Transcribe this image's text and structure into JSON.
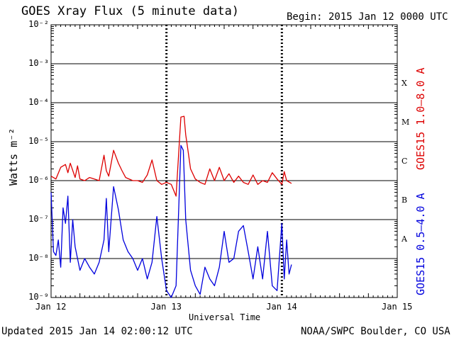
{
  "title": "GOES Xray Flux (5 minute data)",
  "begin_label": "Begin:  2015 Jan 12 0000 UTC",
  "footer_left": "Updated 2015 Jan 14 02:00:12 UTC",
  "footer_right": "NOAA/SWPC Boulder, CO USA",
  "colors": {
    "long": "#dd0000",
    "short": "#0000dd",
    "grid": "#000000"
  },
  "chart_data": {
    "type": "line",
    "title": "GOES Xray Flux (5 minute data)",
    "xlabel": "Universal Time",
    "ylabel": "Watts m⁻²",
    "y_scale": "log",
    "ylim": [
      1e-09,
      0.01
    ],
    "xlim": [
      "2015-01-12 00:00",
      "2015-01-15 00:00"
    ],
    "x_ticks": [
      "Jan 12",
      "Jan 13",
      "Jan 14",
      "Jan 15"
    ],
    "y_ticks": [
      "10⁻⁹",
      "10⁻⁸",
      "10⁻⁷",
      "10⁻⁶",
      "10⁻⁵",
      "10⁻⁴",
      "10⁻³",
      "10⁻²"
    ],
    "flare_classes": [
      "A",
      "B",
      "C",
      "M",
      "X"
    ],
    "grid": true,
    "series": [
      {
        "name": "GOES15 1.0–8.0 A",
        "x": [
          "2015-01-12 00:00",
          "2015-01-12 01:00",
          "2015-01-12 02:00",
          "2015-01-12 03:00",
          "2015-01-12 03:30",
          "2015-01-12 04:00",
          "2015-01-12 05:00",
          "2015-01-12 05:30",
          "2015-01-12 06:00",
          "2015-01-12 07:00",
          "2015-01-12 08:00",
          "2015-01-12 09:00",
          "2015-01-12 10:00",
          "2015-01-12 11:00",
          "2015-01-12 11:30",
          "2015-01-12 12:00",
          "2015-01-12 13:00",
          "2015-01-12 14:00",
          "2015-01-12 14:45",
          "2015-01-12 15:30",
          "2015-01-12 17:00",
          "2015-01-12 18:00",
          "2015-01-12 19:00",
          "2015-01-12 20:00",
          "2015-01-12 21:00",
          "2015-01-12 22:00",
          "2015-01-12 23:00",
          "2015-01-13 00:00",
          "2015-01-13 01:00",
          "2015-01-13 02:00",
          "2015-01-13 03:00",
          "2015-01-13 03:40",
          "2015-01-13 04:00",
          "2015-01-13 04:20",
          "2015-01-13 04:40",
          "2015-01-13 05:00",
          "2015-01-13 06:00",
          "2015-01-13 07:00",
          "2015-01-13 08:00",
          "2015-01-13 09:00",
          "2015-01-13 10:00",
          "2015-01-13 11:00",
          "2015-01-13 12:00",
          "2015-01-13 13:00",
          "2015-01-13 14:00",
          "2015-01-13 15:00",
          "2015-01-13 16:00",
          "2015-01-13 17:00",
          "2015-01-13 18:00",
          "2015-01-13 19:00",
          "2015-01-13 20:00",
          "2015-01-13 21:00",
          "2015-01-13 22:00",
          "2015-01-13 23:00",
          "2015-01-14 00:00",
          "2015-01-14 00:30",
          "2015-01-14 01:00",
          "2015-01-14 02:00"
        ],
        "y": [
          1.3e-06,
          1.1e-06,
          2.2e-06,
          2.6e-06,
          1.6e-06,
          2.8e-06,
          1.2e-06,
          2.4e-06,
          1.1e-06,
          1e-06,
          1.2e-06,
          1.1e-06,
          1e-06,
          4.5e-06,
          1.8e-06,
          1.3e-06,
          6e-06,
          2.8e-06,
          1.8e-06,
          1.2e-06,
          1e-06,
          1e-06,
          9e-07,
          1.4e-06,
          3.4e-06,
          1e-06,
          8e-07,
          9e-07,
          8e-07,
          4e-07,
          4.3e-05,
          4.5e-05,
          1.5e-05,
          8e-06,
          4e-06,
          2e-06,
          1.1e-06,
          9e-07,
          8e-07,
          2e-06,
          1e-06,
          2.2e-06,
          1e-06,
          1.5e-06,
          9e-07,
          1.3e-06,
          9e-07,
          8e-07,
          1.4e-06,
          8e-07,
          1e-06,
          9e-07,
          1.6e-06,
          1.1e-06,
          8e-07,
          1.7e-06,
          1e-06,
          8.5e-07
        ]
      },
      {
        "name": "GOES15 0.5–4.0 A",
        "x": [
          "2015-01-12 00:00",
          "2015-01-12 00:30",
          "2015-01-12 01:00",
          "2015-01-12 01:30",
          "2015-01-12 02:00",
          "2015-01-12 02:30",
          "2015-01-12 03:00",
          "2015-01-12 03:30",
          "2015-01-12 04:00",
          "2015-01-12 04:30",
          "2015-01-12 05:00",
          "2015-01-12 06:00",
          "2015-01-12 07:00",
          "2015-01-12 08:00",
          "2015-01-12 09:00",
          "2015-01-12 10:00",
          "2015-01-12 11:00",
          "2015-01-12 11:30",
          "2015-01-12 12:00",
          "2015-01-12 13:00",
          "2015-01-12 14:00",
          "2015-01-12 15:00",
          "2015-01-12 16:00",
          "2015-01-12 17:00",
          "2015-01-12 18:00",
          "2015-01-12 19:00",
          "2015-01-12 20:00",
          "2015-01-12 21:00",
          "2015-01-12 22:00",
          "2015-01-12 23:00",
          "2015-01-13 00:00",
          "2015-01-13 01:00",
          "2015-01-13 02:00",
          "2015-01-13 03:00",
          "2015-01-13 03:30",
          "2015-01-13 04:00",
          "2015-01-13 05:00",
          "2015-01-13 06:00",
          "2015-01-13 07:00",
          "2015-01-13 08:00",
          "2015-01-13 09:00",
          "2015-01-13 10:00",
          "2015-01-13 11:00",
          "2015-01-13 12:00",
          "2015-01-13 13:00",
          "2015-01-13 14:00",
          "2015-01-13 15:00",
          "2015-01-13 16:00",
          "2015-01-13 17:00",
          "2015-01-13 18:00",
          "2015-01-13 19:00",
          "2015-01-13 20:00",
          "2015-01-13 21:00",
          "2015-01-13 22:00",
          "2015-01-13 23:00",
          "2015-01-14 00:00",
          "2015-01-14 00:30",
          "2015-01-14 01:00",
          "2015-01-14 01:30",
          "2015-01-14 02:00"
        ],
        "y": [
          5e-07,
          1.5e-08,
          1.2e-08,
          3e-08,
          6e-09,
          2e-07,
          8e-08,
          4e-07,
          8e-09,
          1e-07,
          2e-08,
          5e-09,
          1e-08,
          6e-09,
          4e-09,
          8e-09,
          3e-08,
          3.5e-07,
          1.5e-08,
          7e-07,
          1.8e-07,
          3e-08,
          1.5e-08,
          1e-08,
          5e-09,
          1e-08,
          3e-09,
          8e-09,
          1.2e-07,
          1e-08,
          1.5e-09,
          1e-09,
          2e-09,
          8e-06,
          6e-06,
          1e-07,
          5e-09,
          2e-09,
          1.2e-09,
          6e-09,
          3e-09,
          2e-09,
          6e-09,
          5e-08,
          8e-09,
          1e-08,
          5e-08,
          7e-08,
          1.5e-08,
          3e-09,
          2e-08,
          3e-09,
          5e-08,
          2e-09,
          1.5e-09,
          8e-08,
          3e-09,
          3e-08,
          4e-09,
          7e-09
        ]
      }
    ]
  }
}
